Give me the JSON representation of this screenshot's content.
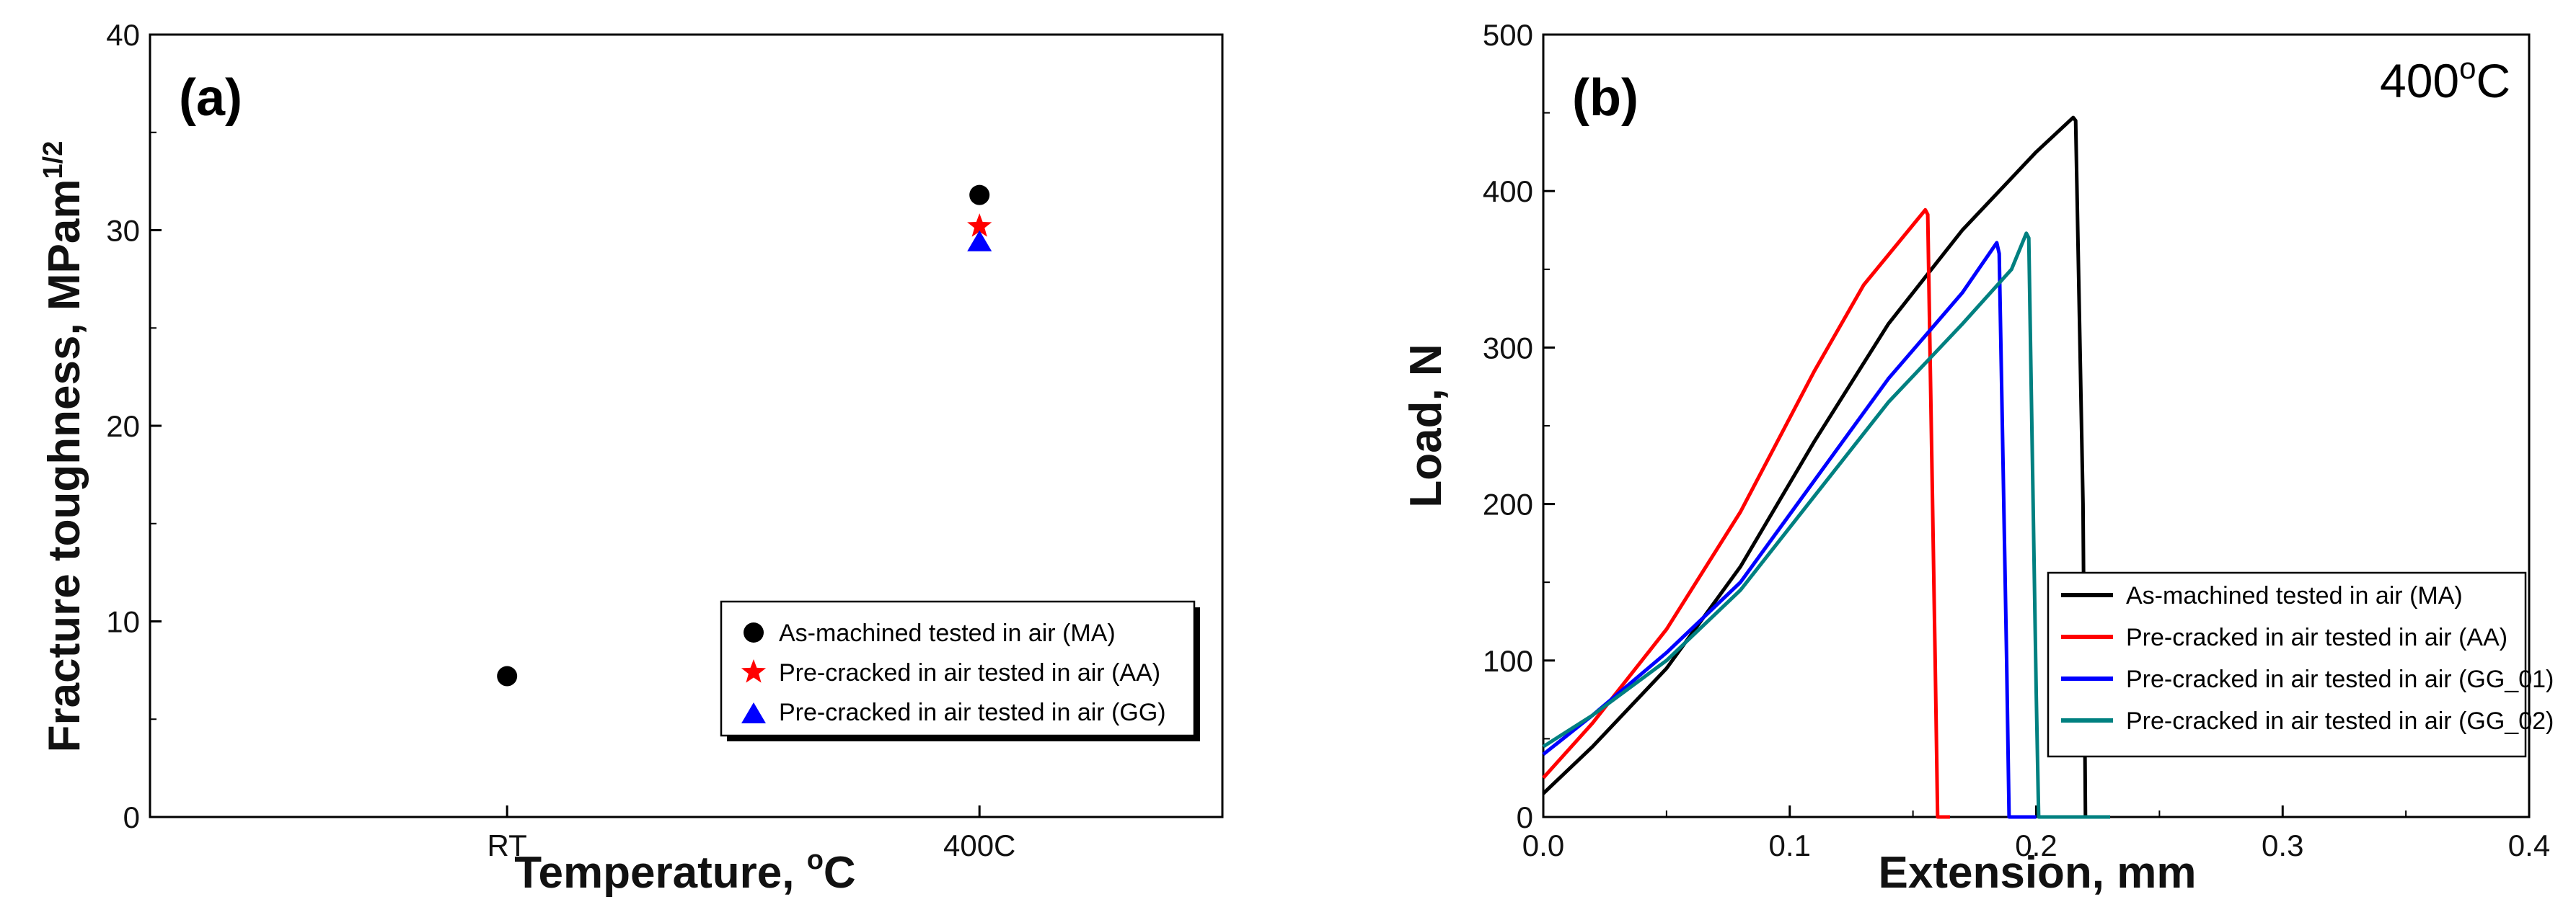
{
  "chart_data": [
    {
      "type": "scatter",
      "panel_label": "(a)",
      "xlabel_main": "Temperature, ",
      "xlabel_unit": "C",
      "xlabel_sup": "o",
      "ylabel_main": "Fracture toughness, MPam",
      "ylabel_sup": "1/2",
      "categories": [
        "RT",
        "400C"
      ],
      "ylim": [
        0,
        40
      ],
      "yticks": [
        0,
        10,
        20,
        30,
        40
      ],
      "legend_position": "bottom-right",
      "series": [
        {
          "name": "As-machined tested in air (MA)",
          "marker": "circle",
          "color": "#000000",
          "values": [
            7.2,
            31.8
          ]
        },
        {
          "name": "Pre-cracked in air tested in air (AA)",
          "marker": "star",
          "color": "#ff0000",
          "values": [
            null,
            30.2
          ]
        },
        {
          "name": "Pre-cracked in air tested in air (GG)",
          "marker": "triangle",
          "color": "#0000ff",
          "values": [
            null,
            29.4
          ]
        }
      ]
    },
    {
      "type": "line",
      "panel_label": "(b)",
      "annotation_main": "400",
      "annotation_sup": "o",
      "annotation_unit": "C",
      "xlabel": "Extension, mm",
      "ylabel": "Load, N",
      "xlim": [
        0,
        0.4
      ],
      "ylim": [
        0,
        500
      ],
      "xticks": [
        0.0,
        0.1,
        0.2,
        0.3,
        0.4
      ],
      "xtick_labels": [
        "0.0",
        "0.1",
        "0.2",
        "0.3",
        "0.4"
      ],
      "yticks": [
        0,
        100,
        200,
        300,
        400,
        500
      ],
      "legend_position": "bottom-right",
      "series": [
        {
          "name": "As-machined tested in air (MA)",
          "color": "#000000",
          "x": [
            0,
            0.02,
            0.05,
            0.08,
            0.11,
            0.14,
            0.17,
            0.2,
            0.215,
            0.216,
            0.219,
            0.22,
            0.23
          ],
          "y": [
            15,
            45,
            95,
            160,
            240,
            315,
            375,
            425,
            447,
            445,
            200,
            0,
            0
          ]
        },
        {
          "name": "Pre-cracked in air tested in air (AA)",
          "color": "#ff0000",
          "x": [
            0,
            0.02,
            0.05,
            0.08,
            0.11,
            0.13,
            0.155,
            0.156,
            0.159,
            0.16,
            0.165
          ],
          "y": [
            25,
            60,
            120,
            195,
            285,
            340,
            388,
            385,
            100,
            0,
            0
          ]
        },
        {
          "name": "Pre-cracked in air tested in air (GG_01)",
          "color": "#0000ff",
          "x": [
            0,
            0.02,
            0.05,
            0.08,
            0.11,
            0.14,
            0.17,
            0.184,
            0.185,
            0.188,
            0.189,
            0.2
          ],
          "y": [
            40,
            65,
            105,
            150,
            215,
            280,
            335,
            367,
            360,
            100,
            0,
            0
          ]
        },
        {
          "name": "Pre-cracked in air tested in air (GG_02)",
          "color": "#008080",
          "x": [
            0,
            0.02,
            0.05,
            0.08,
            0.11,
            0.14,
            0.17,
            0.19,
            0.196,
            0.197,
            0.2,
            0.201,
            0.23
          ],
          "y": [
            45,
            65,
            100,
            145,
            205,
            265,
            315,
            350,
            373,
            370,
            80,
            0,
            0
          ]
        }
      ]
    }
  ]
}
